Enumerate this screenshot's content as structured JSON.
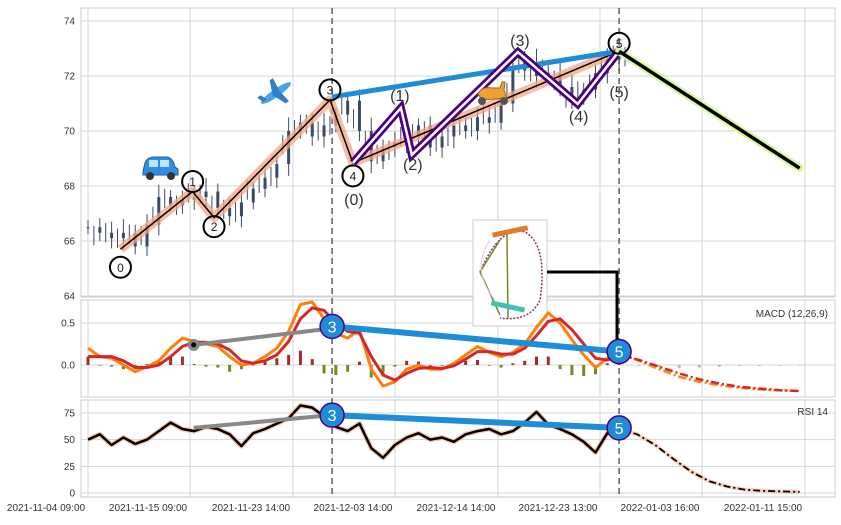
{
  "colors": {
    "wave_main": "#f4a582",
    "wave_sub": "#4b0082",
    "trend_line": "#1f8dd6",
    "projection": "#d9f99d",
    "candle": "#3b4a66",
    "macd": "#ff7f0e",
    "signal": "#d62728",
    "hist_pos": "#a52a2a",
    "hist_neg": "#6b8e23",
    "rsi": "#000000",
    "rsi_glow": "#f4a582"
  },
  "icons": [
    "car-icon",
    "airplane-icon",
    "scooter-icon",
    "roller-coaster-image"
  ],
  "chart_data": [
    {
      "type": "line",
      "panel": "price",
      "yticks": [
        "64",
        "66",
        "68",
        "70",
        "72",
        "74"
      ],
      "ylim": [
        64,
        74.5
      ],
      "grid": true,
      "series_x_range": [
        "2021-11-04 09:00",
        "2021-12-25 15:00"
      ],
      "price_close": [
        66.5,
        66.3,
        66.1,
        66.3,
        65.8,
        66.6,
        67.6,
        67.3,
        67.5,
        67.6,
        67.8,
        67.2,
        66.9,
        67.4,
        67.9,
        68.3,
        68.8,
        70.0,
        70.3,
        69.8,
        70.2,
        70.6,
        71.1,
        70.0,
        68.9,
        69.4,
        69.6,
        69.8,
        70.2,
        69.4,
        69.8,
        70.2,
        70.0,
        70.5,
        70.3,
        71.0,
        72.2,
        72.5,
        72.0,
        72.1,
        71.6,
        71.2,
        71.5,
        72.1,
        72.6,
        72.9
      ],
      "main_wave": [
        {
          "label": "0",
          "date": "2021-11-07 21:00",
          "price": 65.7
        },
        {
          "label": "1",
          "date": "2021-11-15 14:00",
          "price": 67.8
        },
        {
          "label": "2",
          "date": "2021-11-17 07:00",
          "price": 66.85
        },
        {
          "label": "3",
          "date": "2021-11-27 05:00",
          "price": 71.13
        },
        {
          "label": "4",
          "date": "2021-11-29 11:00",
          "price": 68.84
        },
        {
          "label": "5",
          "date": "2021-12-25 15:00",
          "price": 72.9
        }
      ],
      "sub_wave": [
        {
          "label": "(0)",
          "date": "2021-11-29 11:00",
          "price": 68.84
        },
        {
          "label": "(1)",
          "date": "2021-12-04 05:00",
          "price": 70.84
        },
        {
          "label": "(2)",
          "date": "2021-12-05 09:00",
          "price": 69.13
        },
        {
          "label": "(3)",
          "date": "2021-12-16 08:00",
          "price": 72.87
        },
        {
          "label": "(4)",
          "date": "2021-12-21 14:00",
          "price": 70.98
        },
        {
          "label": "(5)",
          "date": "2021-12-25 15:00",
          "price": 72.9
        }
      ],
      "trend_line": [
        {
          "date": "2021-11-27 10:00",
          "price": 71.24
        },
        {
          "date": "2021-12-25 15:00",
          "price": 72.9
        }
      ],
      "projection": [
        {
          "date": "2021-12-25 15:00",
          "price": 72.9
        },
        {
          "date": "2022-01-11 05:00",
          "price": 68.65
        }
      ],
      "vlines": [
        "2021-11-27 10:00",
        "2021-12-25 15:00"
      ]
    },
    {
      "type": "line",
      "panel": "macd",
      "title": "MACD (12,26,9)",
      "yticks": [
        "0.0",
        "0.5"
      ],
      "ylim": [
        -0.35,
        0.8
      ],
      "macd": [
        0.2,
        0.1,
        0.08,
        0.0,
        -0.08,
        -0.02,
        0.05,
        0.2,
        0.32,
        0.28,
        0.25,
        0.22,
        0.1,
        0.0,
        0.02,
        0.1,
        0.2,
        0.4,
        0.72,
        0.75,
        0.55,
        0.38,
        0.32,
        0.42,
        -0.05,
        -0.25,
        -0.2,
        -0.05,
        0.0,
        -0.05,
        -0.05,
        0.02,
        0.12,
        0.22,
        0.15,
        0.1,
        0.15,
        0.25,
        0.45,
        0.62,
        0.5,
        0.3,
        0.12,
        -0.03,
        0.08,
        0.15
      ],
      "signal": [
        0.1,
        0.1,
        0.1,
        0.05,
        -0.03,
        -0.03,
        0.0,
        0.1,
        0.22,
        0.27,
        0.27,
        0.25,
        0.18,
        0.05,
        0.02,
        0.05,
        0.12,
        0.28,
        0.55,
        0.68,
        0.65,
        0.5,
        0.4,
        0.38,
        0.1,
        -0.12,
        -0.18,
        -0.1,
        -0.04,
        -0.03,
        -0.04,
        -0.01,
        0.07,
        0.16,
        0.16,
        0.13,
        0.13,
        0.2,
        0.35,
        0.52,
        0.55,
        0.42,
        0.25,
        0.08,
        0.06,
        0.12
      ],
      "projection_x_range": [
        "2021-12-25 15:00",
        "2022-01-11 05:00"
      ],
      "macd_projection": [
        0.15,
        0.05,
        -0.05,
        -0.14,
        -0.2,
        -0.24,
        -0.27,
        -0.29,
        -0.3,
        -0.31
      ],
      "signal_projection": [
        0.12,
        0.06,
        -0.02,
        -0.1,
        -0.17,
        -0.22,
        -0.26,
        -0.28,
        -0.3,
        -0.31
      ],
      "markers": [
        {
          "label": "3",
          "date": "2021-11-27 10:00",
          "value": 0.46
        },
        {
          "label": "5",
          "date": "2021-12-25 15:00",
          "value": 0.16
        }
      ],
      "grey_line": [
        {
          "date": "2021-11-15 16:00",
          "value": 0.24
        },
        {
          "date": "2021-11-26 06:00",
          "value": 0.42
        }
      ]
    },
    {
      "type": "line",
      "panel": "rsi",
      "title": "RSI 14",
      "yticks": [
        "0",
        "25",
        "50",
        "75"
      ],
      "ylim": [
        -2,
        88
      ],
      "rsi": [
        50,
        55,
        45,
        52,
        46,
        50,
        58,
        66,
        60,
        58,
        62,
        60,
        55,
        44,
        56,
        60,
        65,
        70,
        82,
        80,
        72,
        62,
        58,
        65,
        42,
        33,
        45,
        52,
        56,
        50,
        52,
        48,
        55,
        58,
        60,
        55,
        58,
        66,
        76,
        64,
        60,
        55,
        48,
        38,
        56,
        60
      ],
      "rsi_projection": [
        60,
        55,
        45,
        32,
        20,
        11,
        6,
        3,
        2,
        1.5,
        1
      ],
      "markers": [
        {
          "label": "3",
          "date": "2021-11-27 10:00",
          "value": 73
        },
        {
          "label": "5",
          "date": "2021-12-25 15:00",
          "value": 61
        }
      ],
      "grey_line": [
        {
          "date": "2021-11-15 16:00",
          "value": 61
        },
        {
          "date": "2021-11-26 06:00",
          "value": 72
        }
      ]
    }
  ],
  "xticks": [
    "2021-11-04 09:00",
    "2021-11-15 09:00",
    "2021-11-23 14:00",
    "2021-12-03 14:00",
    "2021-12-14 14:00",
    "2021-12-23 13:00",
    "2022-01-03 16:00",
    "2022-01-11 15:00"
  ]
}
